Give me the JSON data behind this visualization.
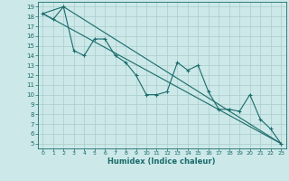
{
  "background_color": "#cce8e8",
  "grid_color": "#aacccc",
  "line_color": "#1a6b6b",
  "xlabel": "Humidex (Indice chaleur)",
  "xlim": [
    -0.5,
    23.5
  ],
  "ylim": [
    4.5,
    19.5
  ],
  "xticks": [
    0,
    1,
    2,
    3,
    4,
    5,
    6,
    7,
    8,
    9,
    10,
    11,
    12,
    13,
    14,
    15,
    16,
    17,
    18,
    19,
    20,
    21,
    22,
    23
  ],
  "yticks": [
    5,
    6,
    7,
    8,
    9,
    10,
    11,
    12,
    13,
    14,
    15,
    16,
    17,
    18,
    19
  ],
  "line1_x": [
    0,
    1,
    2,
    3,
    4,
    5,
    6,
    7,
    8,
    9,
    10,
    11,
    12,
    13,
    14,
    15,
    16,
    17,
    18,
    19,
    20,
    21,
    22,
    23
  ],
  "line1_y": [
    18.3,
    17.7,
    19.0,
    14.5,
    14.0,
    15.7,
    15.7,
    14.0,
    13.3,
    12.0,
    10.0,
    10.0,
    10.3,
    13.3,
    12.5,
    13.0,
    10.3,
    8.5,
    8.5,
    8.3,
    10.0,
    7.5,
    6.5,
    5.0
  ],
  "line2_x": [
    0,
    23
  ],
  "line2_y": [
    18.3,
    5.0
  ],
  "line3_x": [
    0,
    2,
    23
  ],
  "line3_y": [
    18.3,
    19.0,
    5.0
  ]
}
